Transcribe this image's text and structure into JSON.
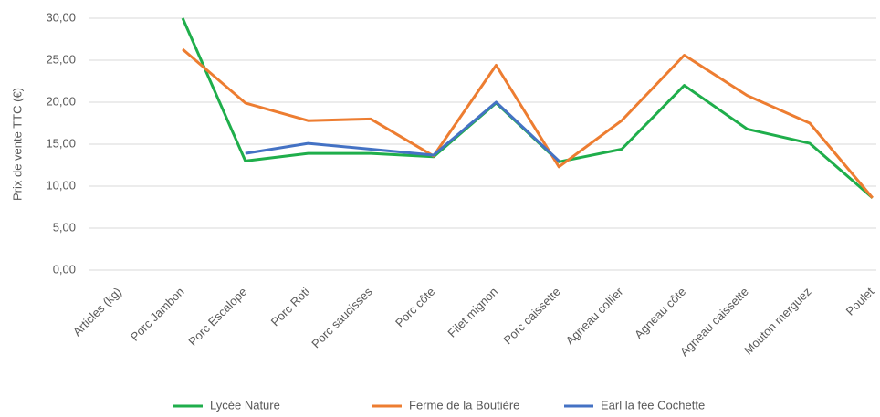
{
  "chart_data": {
    "type": "line",
    "y_label": "Prix de vente TTC (€)",
    "categories": [
      "Articles (kg)",
      "Porc Jambon",
      "Porc Escalope",
      "Porc Roti",
      "Porc saucisses",
      "Porc côte",
      "Filet mignon",
      "Porc caissette",
      "Agneau collier",
      "Agneau côte",
      "Agneau caissette",
      "Mouton merguez",
      "Poulet"
    ],
    "series": [
      {
        "name": "Lycée Nature",
        "color": "#1fae4b",
        "values": [
          null,
          30,
          13.0,
          13.9,
          13.9,
          13.5,
          19.9,
          12.9,
          14.4,
          22.0,
          16.8,
          15.1,
          8.6
        ]
      },
      {
        "name": "Ferme de la Boutière",
        "color": "#ed7d31",
        "values": [
          null,
          26.3,
          19.9,
          17.8,
          18.0,
          13.6,
          24.4,
          12.3,
          17.8,
          25.6,
          20.8,
          17.5,
          8.6
        ]
      },
      {
        "name": "Earl la fée Cochette",
        "color": "#4472c4",
        "values": [
          null,
          null,
          13.9,
          15.1,
          14.4,
          13.7,
          20.0,
          13.0,
          null,
          null,
          null,
          null,
          null
        ]
      }
    ],
    "ylim": [
      0,
      30
    ],
    "yticks": [
      {
        "value": 0,
        "label": "0,00"
      },
      {
        "value": 5,
        "label": "5,00"
      },
      {
        "value": 10,
        "label": "10,00"
      },
      {
        "value": 15,
        "label": "15,00"
      },
      {
        "value": 20,
        "label": "20,00"
      },
      {
        "value": 25,
        "label": "25,00"
      },
      {
        "value": 30,
        "label": "30,00"
      }
    ],
    "grid": true,
    "legend": "bottom"
  }
}
